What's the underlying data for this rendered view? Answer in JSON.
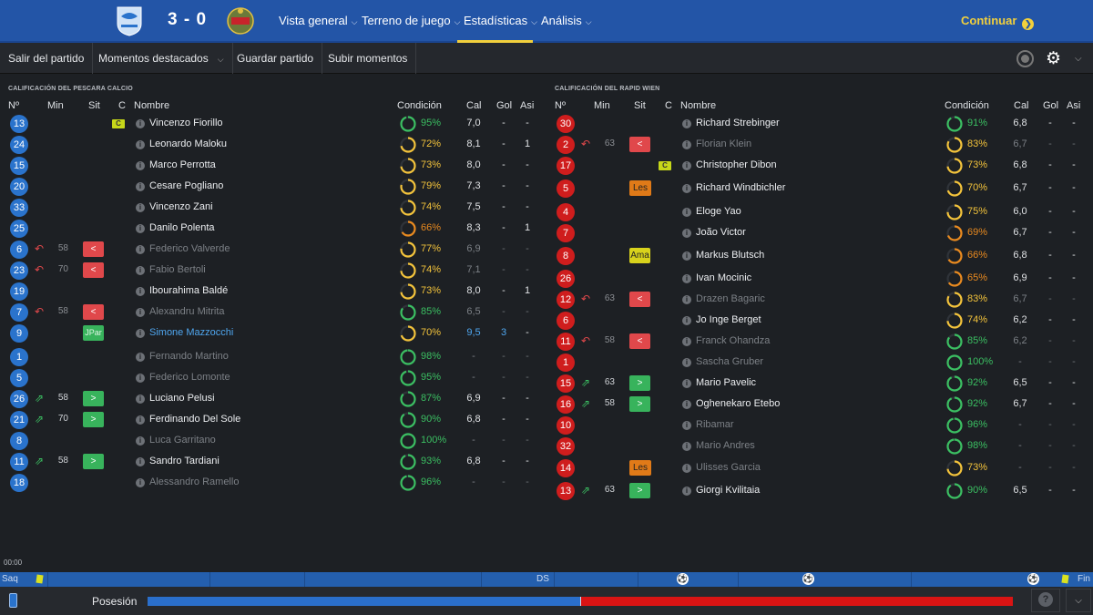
{
  "topbar": {
    "score": "3 - 0",
    "home_crest_icon": "pescara-crest-icon",
    "away_crest_icon": "rapid-wien-crest-icon",
    "nav": [
      {
        "label": "Vista general",
        "dropdown": true,
        "active": false
      },
      {
        "label": "Terreno de juego",
        "dropdown": true,
        "active": false
      },
      {
        "label": "Estadísticas",
        "dropdown": true,
        "active": true
      },
      {
        "label": "Análisis",
        "dropdown": true,
        "active": false
      }
    ],
    "continue_label": "Continuar"
  },
  "toolbar": {
    "exit_label": "Salir del partido",
    "highlights_label": "Momentos destacados",
    "save_label": "Guardar partido",
    "upload_label": "Subir momentos"
  },
  "home": {
    "title": "Calificación del Pescara Calcio",
    "columns": {
      "num": "Nº",
      "min": "Min",
      "sit": "Sit",
      "c": "C",
      "name": "Nombre",
      "cond": "Condición",
      "cal": "Cal",
      "gol": "Gol",
      "asi": "Asi"
    },
    "players": [
      {
        "num": "13",
        "min": "",
        "move": "",
        "sit": "",
        "captain": true,
        "name": "Vincenzo Fiorillo",
        "cond": "95%",
        "cond_value": 95,
        "cal": "7,0",
        "gol": "-",
        "asi": "-",
        "style": "normal"
      },
      {
        "num": "24",
        "min": "",
        "move": "",
        "sit": "",
        "captain": false,
        "name": "Leonardo Maloku",
        "cond": "72%",
        "cond_value": 72,
        "cal": "8,1",
        "gol": "-",
        "asi": "1",
        "style": "normal"
      },
      {
        "num": "15",
        "min": "",
        "move": "",
        "sit": "",
        "captain": false,
        "name": "Marco Perrotta",
        "cond": "73%",
        "cond_value": 73,
        "cal": "8,0",
        "gol": "-",
        "asi": "-",
        "style": "normal"
      },
      {
        "num": "20",
        "min": "",
        "move": "",
        "sit": "",
        "captain": false,
        "name": "Cesare Pogliano",
        "cond": "79%",
        "cond_value": 79,
        "cal": "7,3",
        "gol": "-",
        "asi": "-",
        "style": "normal"
      },
      {
        "num": "33",
        "min": "",
        "move": "",
        "sit": "",
        "captain": false,
        "name": "Vincenzo Zani",
        "cond": "74%",
        "cond_value": 74,
        "cal": "7,5",
        "gol": "-",
        "asi": "-",
        "style": "normal"
      },
      {
        "num": "25",
        "min": "",
        "move": "",
        "sit": "",
        "captain": false,
        "name": "Danilo Polenta",
        "cond": "66%",
        "cond_value": 66,
        "cal": "8,3",
        "gol": "-",
        "asi": "1",
        "style": "normal"
      },
      {
        "num": "6",
        "min": "58",
        "move": "out",
        "sit": "<",
        "captain": false,
        "name": "Federico Valverde",
        "cond": "77%",
        "cond_value": 77,
        "cal": "6,9",
        "gol": "-",
        "asi": "-",
        "style": "dim"
      },
      {
        "num": "23",
        "min": "70",
        "move": "out",
        "sit": "<",
        "captain": false,
        "name": "Fabio Bertoli",
        "cond": "74%",
        "cond_value": 74,
        "cal": "7,1",
        "gol": "-",
        "asi": "-",
        "style": "dim"
      },
      {
        "num": "19",
        "min": "",
        "move": "",
        "sit": "",
        "captain": false,
        "name": "Ibourahima Baldé",
        "cond": "73%",
        "cond_value": 73,
        "cal": "8,0",
        "gol": "-",
        "asi": "1",
        "style": "normal"
      },
      {
        "num": "7",
        "min": "58",
        "move": "out",
        "sit": "<",
        "captain": false,
        "name": "Alexandru Mitrita",
        "cond": "85%",
        "cond_value": 85,
        "cal": "6,5",
        "gol": "-",
        "asi": "-",
        "style": "dim"
      },
      {
        "num": "9",
        "min": "",
        "move": "",
        "sit": "JPar",
        "captain": false,
        "name": "Simone Mazzocchi",
        "cond": "70%",
        "cond_value": 70,
        "cal": "9,5",
        "gol": "3",
        "asi": "-",
        "style": "hl"
      },
      {
        "num": "1",
        "min": "",
        "move": "",
        "sit": "",
        "captain": false,
        "name": "Fernando Martino",
        "cond": "98%",
        "cond_value": 98,
        "cal": "-",
        "gol": "-",
        "asi": "-",
        "style": "dim"
      },
      {
        "num": "5",
        "min": "",
        "move": "",
        "sit": "",
        "captain": false,
        "name": "Federico Lomonte",
        "cond": "95%",
        "cond_value": 95,
        "cal": "-",
        "gol": "-",
        "asi": "-",
        "style": "dim"
      },
      {
        "num": "26",
        "min": "58",
        "move": "in",
        "sit": ">",
        "captain": false,
        "name": "Luciano Pelusi",
        "cond": "87%",
        "cond_value": 87,
        "cal": "6,9",
        "gol": "-",
        "asi": "-",
        "style": "normal"
      },
      {
        "num": "21",
        "min": "70",
        "move": "in",
        "sit": ">",
        "captain": false,
        "name": "Ferdinando Del Sole",
        "cond": "90%",
        "cond_value": 90,
        "cal": "6,8",
        "gol": "-",
        "asi": "-",
        "style": "normal"
      },
      {
        "num": "8",
        "min": "",
        "move": "",
        "sit": "",
        "captain": false,
        "name": "Luca Garritano",
        "cond": "100%",
        "cond_value": 100,
        "cal": "-",
        "gol": "-",
        "asi": "-",
        "style": "dim"
      },
      {
        "num": "11",
        "min": "58",
        "move": "in",
        "sit": ">",
        "captain": false,
        "name": "Sandro Tardiani",
        "cond": "93%",
        "cond_value": 93,
        "cal": "6,8",
        "gol": "-",
        "asi": "-",
        "style": "normal"
      },
      {
        "num": "18",
        "min": "",
        "move": "",
        "sit": "",
        "captain": false,
        "name": "Alessandro Ramello",
        "cond": "96%",
        "cond_value": 96,
        "cal": "-",
        "gol": "-",
        "asi": "-",
        "style": "dim"
      }
    ]
  },
  "away": {
    "title": "Calificación del Rapid Wien",
    "columns": {
      "num": "Nº",
      "min": "Min",
      "sit": "Sit",
      "c": "C",
      "name": "Nombre",
      "cond": "Condición",
      "cal": "Cal",
      "gol": "Gol",
      "asi": "Asi"
    },
    "players": [
      {
        "num": "30",
        "min": "",
        "move": "",
        "sit": "",
        "captain": false,
        "name": "Richard Strebinger",
        "cond": "91%",
        "cond_value": 91,
        "cal": "6,8",
        "gol": "-",
        "asi": "-",
        "style": "normal"
      },
      {
        "num": "2",
        "min": "63",
        "move": "out",
        "sit": "<",
        "captain": false,
        "name": "Florian Klein",
        "cond": "83%",
        "cond_value": 83,
        "cal": "6,7",
        "gol": "-",
        "asi": "-",
        "style": "dim"
      },
      {
        "num": "17",
        "min": "",
        "move": "",
        "sit": "",
        "captain": true,
        "name": "Christopher Dibon",
        "cond": "73%",
        "cond_value": 73,
        "cal": "6,8",
        "gol": "-",
        "asi": "-",
        "style": "normal"
      },
      {
        "num": "5",
        "min": "",
        "move": "",
        "sit": "Les",
        "captain": false,
        "name": "Richard Windbichler",
        "cond": "70%",
        "cond_value": 70,
        "cal": "6,7",
        "gol": "-",
        "asi": "-",
        "style": "normal"
      },
      {
        "num": "4",
        "min": "",
        "move": "",
        "sit": "",
        "captain": false,
        "name": "Eloge Yao",
        "cond": "75%",
        "cond_value": 75,
        "cal": "6,0",
        "gol": "-",
        "asi": "-",
        "style": "normal"
      },
      {
        "num": "7",
        "min": "",
        "move": "",
        "sit": "",
        "captain": false,
        "name": "João Victor",
        "cond": "69%",
        "cond_value": 69,
        "cal": "6,7",
        "gol": "-",
        "asi": "-",
        "style": "normal"
      },
      {
        "num": "8",
        "min": "",
        "move": "",
        "sit": "Ama",
        "captain": false,
        "name": "Markus Blutsch",
        "cond": "66%",
        "cond_value": 66,
        "cal": "6,8",
        "gol": "-",
        "asi": "-",
        "style": "normal"
      },
      {
        "num": "26",
        "min": "",
        "move": "",
        "sit": "",
        "captain": false,
        "name": "Ivan Mocinic",
        "cond": "65%",
        "cond_value": 65,
        "cal": "6,9",
        "gol": "-",
        "asi": "-",
        "style": "normal"
      },
      {
        "num": "12",
        "min": "63",
        "move": "out",
        "sit": "<",
        "captain": false,
        "name": "Drazen Bagaric",
        "cond": "83%",
        "cond_value": 83,
        "cal": "6,7",
        "gol": "-",
        "asi": "-",
        "style": "dim"
      },
      {
        "num": "6",
        "min": "",
        "move": "",
        "sit": "",
        "captain": false,
        "name": "Jo Inge Berget",
        "cond": "74%",
        "cond_value": 74,
        "cal": "6,2",
        "gol": "-",
        "asi": "-",
        "style": "normal"
      },
      {
        "num": "11",
        "min": "58",
        "move": "out",
        "sit": "<",
        "captain": false,
        "name": "Franck Ohandza",
        "cond": "85%",
        "cond_value": 85,
        "cal": "6,2",
        "gol": "-",
        "asi": "-",
        "style": "dim"
      },
      {
        "num": "1",
        "min": "",
        "move": "",
        "sit": "",
        "captain": false,
        "name": "Sascha Gruber",
        "cond": "100%",
        "cond_value": 100,
        "cal": "-",
        "gol": "-",
        "asi": "-",
        "style": "dim"
      },
      {
        "num": "15",
        "min": "63",
        "move": "in",
        "sit": ">",
        "captain": false,
        "name": "Mario Pavelic",
        "cond": "92%",
        "cond_value": 92,
        "cal": "6,5",
        "gol": "-",
        "asi": "-",
        "style": "normal"
      },
      {
        "num": "16",
        "min": "58",
        "move": "in",
        "sit": ">",
        "captain": false,
        "name": "Oghenekaro Etebo",
        "cond": "92%",
        "cond_value": 92,
        "cal": "6,7",
        "gol": "-",
        "asi": "-",
        "style": "normal"
      },
      {
        "num": "10",
        "min": "",
        "move": "",
        "sit": "",
        "captain": false,
        "name": "Ribamar",
        "cond": "96%",
        "cond_value": 96,
        "cal": "-",
        "gol": "-",
        "asi": "-",
        "style": "dim"
      },
      {
        "num": "32",
        "min": "",
        "move": "",
        "sit": "",
        "captain": false,
        "name": "Mario Andres",
        "cond": "98%",
        "cond_value": 98,
        "cal": "-",
        "gol": "-",
        "asi": "-",
        "style": "dim"
      },
      {
        "num": "14",
        "min": "",
        "move": "",
        "sit": "Les",
        "captain": false,
        "name": "Ulisses Garcia",
        "cond": "73%",
        "cond_value": 73,
        "cal": "-",
        "gol": "-",
        "asi": "-",
        "style": "dim"
      },
      {
        "num": "13",
        "min": "63",
        "move": "in",
        "sit": ">",
        "captain": false,
        "name": "Giorgi Kvilitaia",
        "cond": "90%",
        "cond_value": 90,
        "cal": "6,5",
        "gol": "-",
        "asi": "-",
        "style": "normal"
      }
    ]
  },
  "timeline": {
    "time": "00:00",
    "start_label": "Saq",
    "half_label": "DS",
    "end_label": "Fin"
  },
  "bottom": {
    "possession_label": "Posesión",
    "possession_home": 0.5,
    "help_label": "?"
  },
  "colors": {
    "home": "#2a73cc",
    "away": "#cf1d1d",
    "cond_green": "#3bbf62",
    "cond_yellow": "#f3c33b",
    "cond_orange": "#e98a1f",
    "accent": "#f2d03c"
  }
}
